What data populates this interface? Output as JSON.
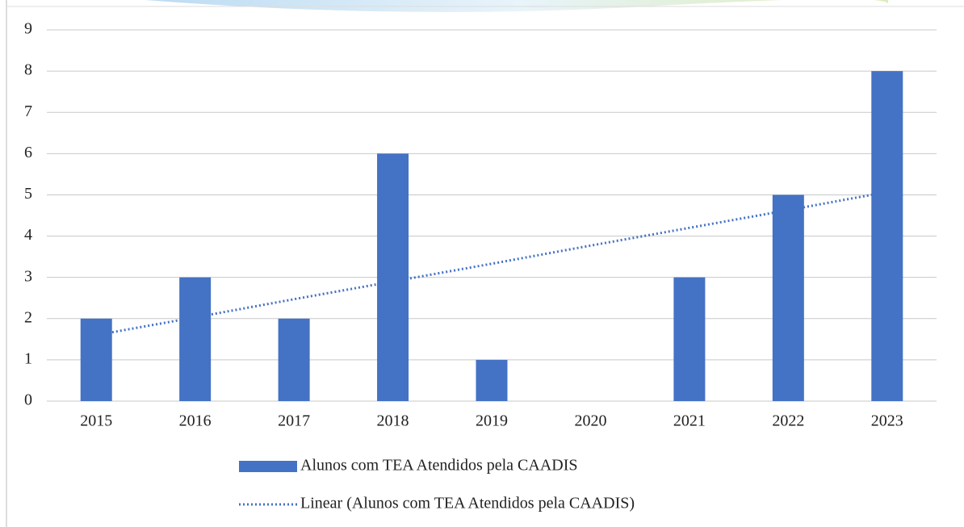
{
  "chart_data": {
    "type": "bar",
    "categories": [
      "2015",
      "2016",
      "2017",
      "2018",
      "2019",
      "2020",
      "2021",
      "2022",
      "2023"
    ],
    "series": [
      {
        "name": "Alunos com TEA Atendidos pela CAADIS",
        "color": "#4472c4",
        "values": [
          2,
          3,
          2,
          6,
          1,
          0,
          3,
          5,
          8
        ]
      },
      {
        "name": "Linear (Alunos com TEA Atendidos pela CAADIS)",
        "color": "#4472c4",
        "type": "trendline",
        "values": [
          1.6,
          2.03,
          2.47,
          2.9,
          3.33,
          3.77,
          4.2,
          4.63,
          5.07
        ]
      }
    ],
    "ylim": [
      0,
      9
    ],
    "yticks": [
      0,
      1,
      2,
      3,
      4,
      5,
      6,
      7,
      8,
      9
    ],
    "grid": true,
    "legend": "bottom"
  }
}
